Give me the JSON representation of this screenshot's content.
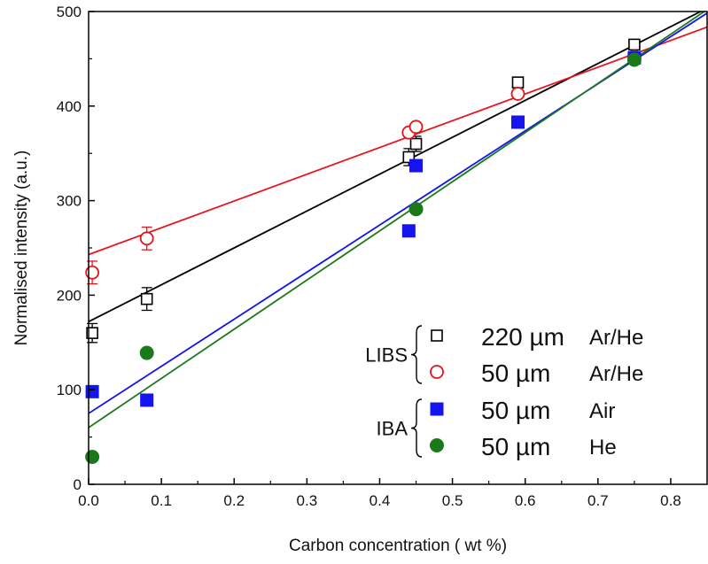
{
  "chart_data": {
    "type": "scatter",
    "title": "",
    "xlabel": "Carbon concentration ( wt %)",
    "ylabel": "Normalised intensity (a.u.)",
    "xlim": [
      0.0,
      0.85
    ],
    "ylim": [
      0,
      500
    ],
    "x_ticks": [
      0.0,
      0.1,
      0.2,
      0.3,
      0.4,
      0.5,
      0.6,
      0.7,
      0.8
    ],
    "x_tick_labels": [
      "0.0",
      "0.1",
      "0.2",
      "0.3",
      "0.4",
      "0.5",
      "0.6",
      "0.7",
      "0.8"
    ],
    "y_ticks": [
      0,
      100,
      200,
      300,
      400,
      500
    ],
    "y_tick_labels": [
      "0",
      "100",
      "200",
      "300",
      "400",
      "500"
    ],
    "grid": false,
    "legend_position": "bottom-right",
    "series": [
      {
        "name": "220 µm",
        "gas": "Ar/He",
        "group": "LIBS",
        "marker": "open-square",
        "color": "#000000",
        "points": [
          [
            0.005,
            160
          ],
          [
            0.08,
            196
          ],
          [
            0.44,
            346
          ],
          [
            0.45,
            360
          ],
          [
            0.59,
            425
          ],
          [
            0.75,
            465
          ]
        ],
        "errors": [
          10,
          12,
          9,
          8,
          0,
          0
        ],
        "fit": {
          "intercept": 172,
          "slope": 390
        }
      },
      {
        "name": "50 µm",
        "gas": "Ar/He",
        "group": "LIBS",
        "marker": "open-circle",
        "color": "#e8141b",
        "points": [
          [
            0.005,
            224
          ],
          [
            0.08,
            260
          ],
          [
            0.44,
            372
          ],
          [
            0.45,
            378
          ],
          [
            0.59,
            413
          ],
          [
            0.75,
            452
          ]
        ],
        "errors": [
          12,
          12,
          0,
          0,
          0,
          0
        ],
        "fit": {
          "intercept": 243,
          "slope": 283
        }
      },
      {
        "name": "50 µm",
        "gas": "Air",
        "group": "IBA",
        "marker": "filled-square",
        "color": "#1414ee",
        "points": [
          [
            0.005,
            98
          ],
          [
            0.08,
            89
          ],
          [
            0.44,
            268
          ],
          [
            0.45,
            337
          ],
          [
            0.59,
            383
          ],
          [
            0.75,
            451
          ]
        ],
        "errors": [
          0,
          0,
          0,
          0,
          0,
          0
        ],
        "fit": {
          "intercept": 75,
          "slope": 498
        }
      },
      {
        "name": "50 µm",
        "gas": "He",
        "group": "IBA",
        "marker": "filled-circle",
        "color": "#1a7a1a",
        "points": [
          [
            0.005,
            29
          ],
          [
            0.08,
            139
          ],
          [
            0.45,
            291
          ],
          [
            0.75,
            449
          ]
        ],
        "errors": [
          0,
          0,
          0,
          0
        ],
        "fit": {
          "intercept": 60,
          "slope": 520
        }
      }
    ]
  }
}
